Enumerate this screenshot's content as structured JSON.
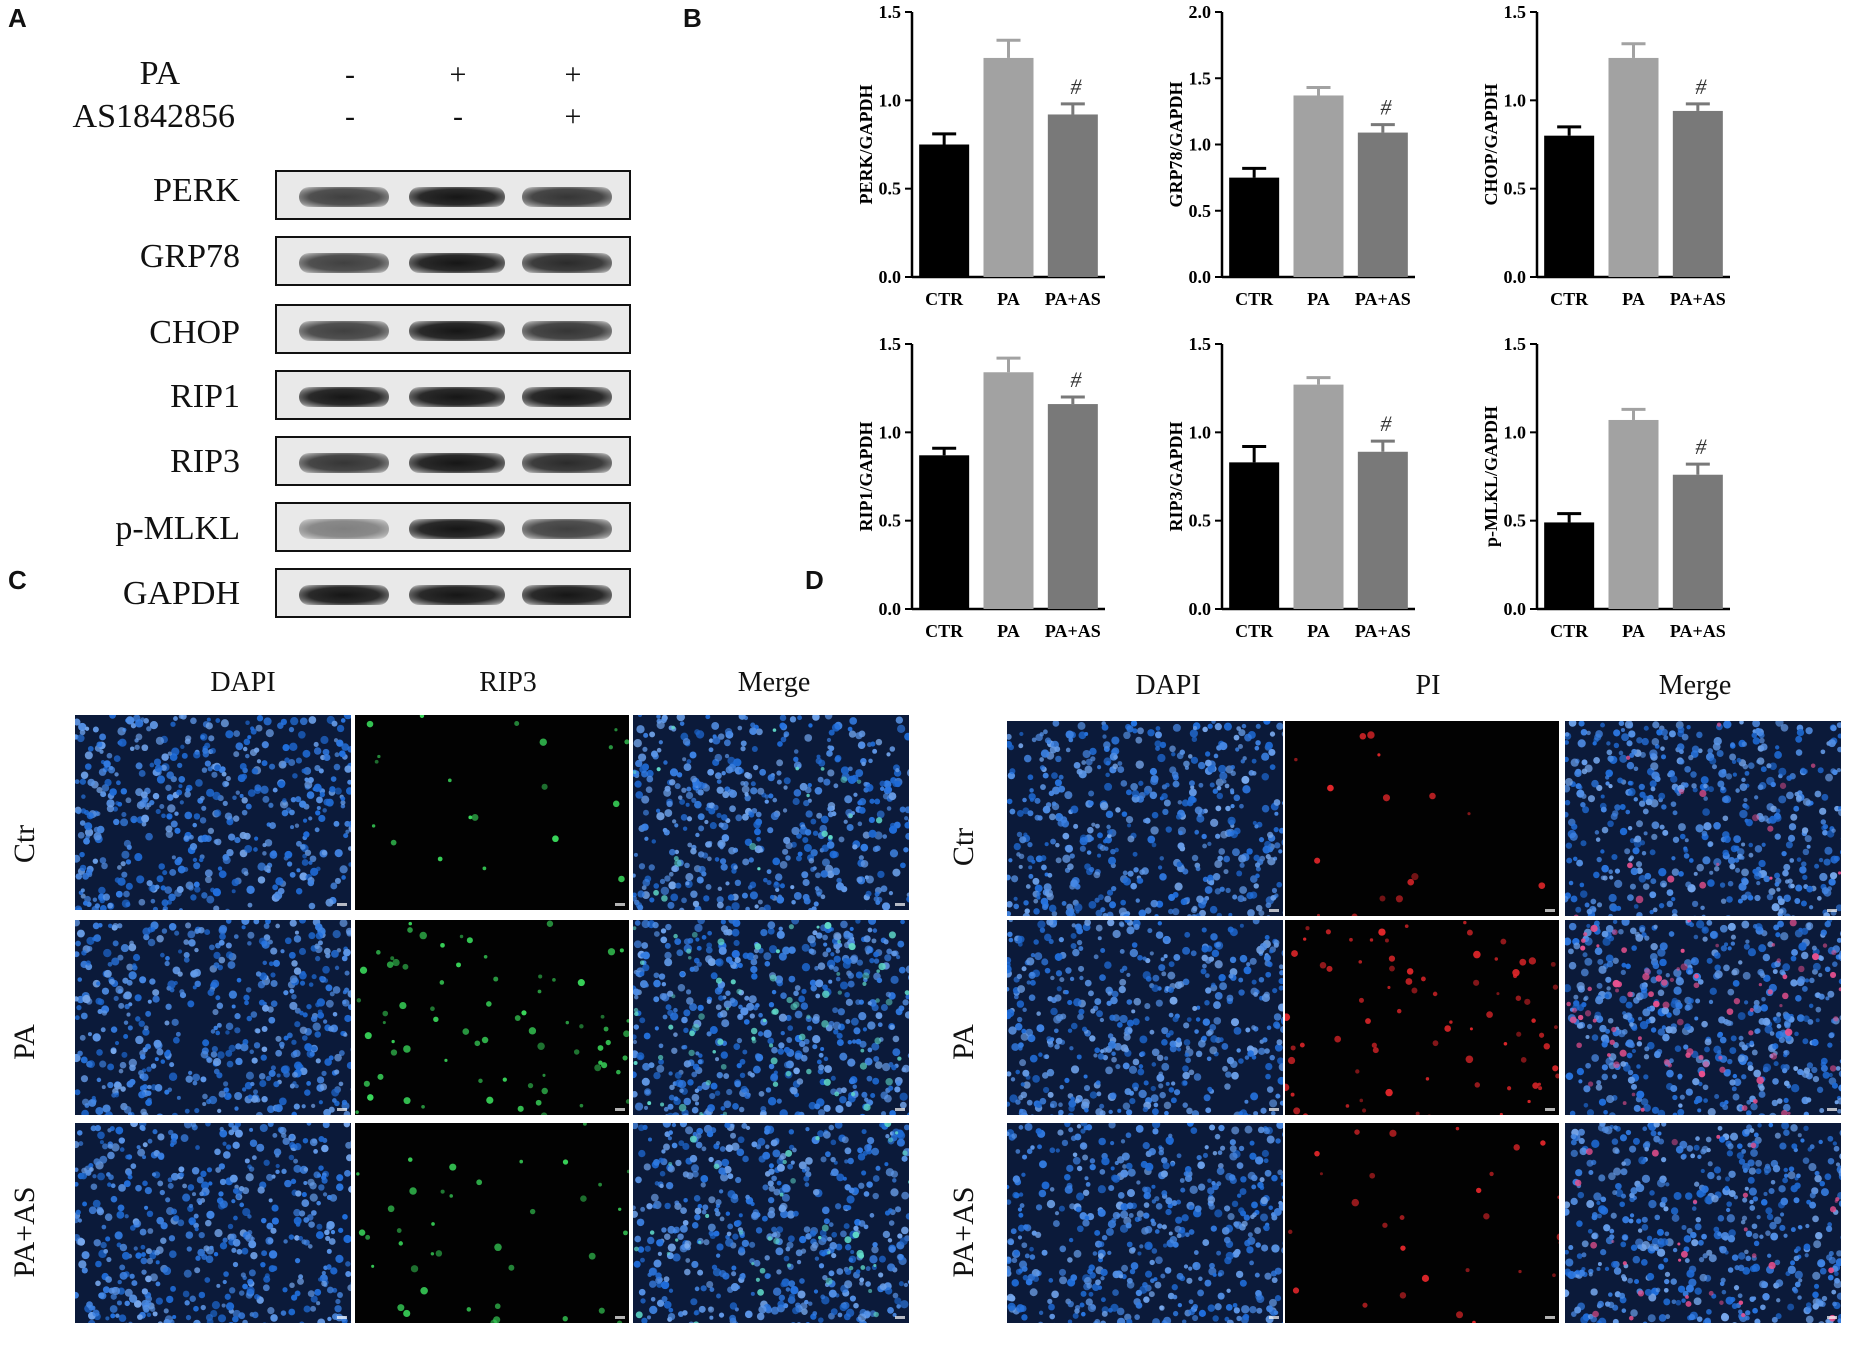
{
  "panels": {
    "A": "A",
    "B": "B",
    "C": "C",
    "D": "D"
  },
  "western_blot": {
    "treatment_rows": [
      {
        "label": "PA",
        "signs": [
          "-",
          "+",
          "+"
        ]
      },
      {
        "label": "AS1842856",
        "signs": [
          "-",
          "-",
          "+"
        ]
      }
    ],
    "bands": [
      "PERK",
      "GRP78",
      "CHOP",
      "RIP1",
      "RIP3",
      "p-MLKL",
      "GAPDH"
    ]
  },
  "chart_data": [
    {
      "type": "bar",
      "ylabel": "PERK/GAPDH",
      "categories": [
        "CTR",
        "PA",
        "PA+AS"
      ],
      "values": [
        0.75,
        1.24,
        0.92
      ],
      "errors": [
        0.06,
        0.1,
        0.06
      ],
      "annotations": [
        "",
        "",
        "#"
      ],
      "ylim": [
        0,
        1.5
      ],
      "yticks": [
        "0.0",
        "0.5",
        "1.0",
        "1.5"
      ]
    },
    {
      "type": "bar",
      "ylabel": "GRP78/GAPDH",
      "categories": [
        "CTR",
        "PA",
        "PA+AS"
      ],
      "values": [
        0.75,
        1.37,
        1.09
      ],
      "errors": [
        0.07,
        0.06,
        0.06
      ],
      "annotations": [
        "",
        "",
        "#"
      ],
      "ylim": [
        0,
        2.0
      ],
      "yticks": [
        "0.0",
        "0.5",
        "1.0",
        "1.5",
        "2.0"
      ]
    },
    {
      "type": "bar",
      "ylabel": "CHOP/GAPDH",
      "categories": [
        "CTR",
        "PA",
        "PA+AS"
      ],
      "values": [
        0.8,
        1.24,
        0.94
      ],
      "errors": [
        0.05,
        0.08,
        0.04
      ],
      "annotations": [
        "",
        "",
        "#"
      ],
      "ylim": [
        0,
        1.5
      ],
      "yticks": [
        "0.0",
        "0.5",
        "1.0",
        "1.5"
      ]
    },
    {
      "type": "bar",
      "ylabel": "RIP1/GAPDH",
      "categories": [
        "CTR",
        "PA",
        "PA+AS"
      ],
      "values": [
        0.87,
        1.34,
        1.16
      ],
      "errors": [
        0.04,
        0.08,
        0.04
      ],
      "annotations": [
        "",
        "",
        "#"
      ],
      "ylim": [
        0,
        1.5
      ],
      "yticks": [
        "0.0",
        "0.5",
        "1.0",
        "1.5"
      ]
    },
    {
      "type": "bar",
      "ylabel": "RIP3/GAPDH",
      "categories": [
        "CTR",
        "PA",
        "PA+AS"
      ],
      "values": [
        0.83,
        1.27,
        0.89
      ],
      "errors": [
        0.09,
        0.04,
        0.06
      ],
      "annotations": [
        "",
        "",
        "#"
      ],
      "ylim": [
        0,
        1.5
      ],
      "yticks": [
        "0.0",
        "0.5",
        "1.0",
        "1.5"
      ]
    },
    {
      "type": "bar",
      "ylabel": "p-MLKL/GAPDH",
      "categories": [
        "CTR",
        "PA",
        "PA+AS"
      ],
      "values": [
        0.49,
        1.07,
        0.76
      ],
      "errors": [
        0.05,
        0.06,
        0.06
      ],
      "annotations": [
        "",
        "",
        "#"
      ],
      "ylim": [
        0,
        1.5
      ],
      "yticks": [
        "0.0",
        "0.5",
        "1.0",
        "1.5"
      ]
    }
  ],
  "bar_colors": [
    "#000000",
    "#a2a2a2",
    "#797979"
  ],
  "if_panels": [
    {
      "columns": [
        "DAPI",
        "RIP3",
        "Merge"
      ],
      "rows": [
        "Ctr",
        "PA",
        "PA+AS"
      ],
      "marker_color": "#39d65a"
    },
    {
      "columns": [
        "DAPI",
        "PI",
        "Merge"
      ],
      "rows": [
        "Ctr",
        "PA",
        "PA+AS"
      ],
      "marker_color": "#e0262a"
    }
  ]
}
